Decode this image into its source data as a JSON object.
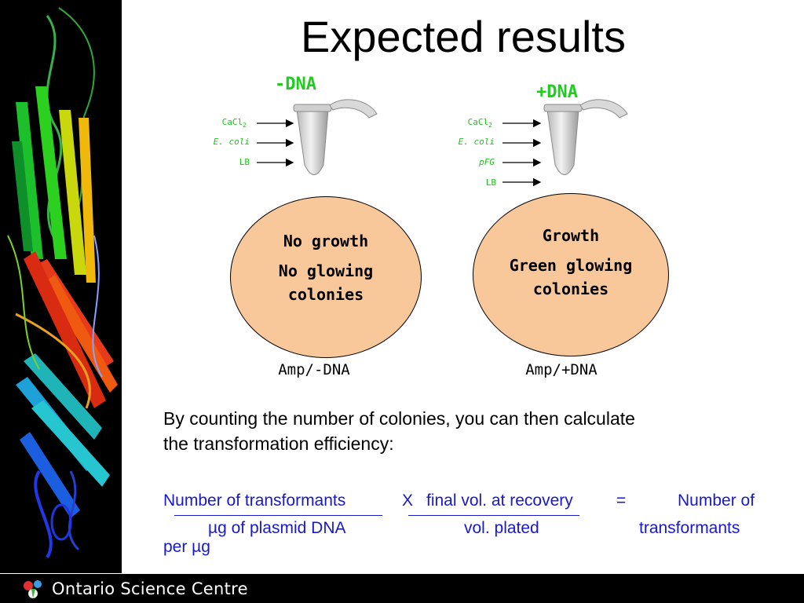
{
  "title": "Expected results",
  "tubes": {
    "minus": {
      "label": "-DNA",
      "reagents": [
        {
          "base": "CaCl",
          "sub": "2"
        },
        {
          "base": "E. coli",
          "sub": ""
        },
        {
          "base": "LB",
          "sub": ""
        }
      ]
    },
    "plus": {
      "label": "+DNA",
      "reagents": [
        {
          "base": "CaCl",
          "sub": "2"
        },
        {
          "base": "E. coli",
          "sub": ""
        },
        {
          "base": "pFG",
          "sub": ""
        },
        {
          "base": "LB",
          "sub": ""
        }
      ]
    }
  },
  "plates": {
    "minus": {
      "line1": "No growth",
      "line2a": "No glowing",
      "line2b": "colonies",
      "label": "Amp/-DNA"
    },
    "plus": {
      "line1": "Growth",
      "line2a": "Green glowing",
      "line2b": "colonies",
      "label": "Amp/+DNA"
    }
  },
  "description": {
    "line1": "By counting the number of colonies, you can then calculate",
    "line2": "the transformation efficiency:"
  },
  "formula": {
    "numerator1": "Number of transformants",
    "operator_x": "X",
    "numerator2": "final vol. at recovery",
    "operator_eq": "=",
    "result_top": "Number of",
    "denominator1": "µg of plasmid DNA",
    "denominator2": "vol. plated",
    "result_bottom": "transformants",
    "result_tail": "per µg"
  },
  "footer": {
    "brand": "Ontario Science Centre"
  },
  "colors": {
    "green_label": "#1fcc1f",
    "formula_blue": "#1818cc",
    "dish_fill": "#f8c89a"
  }
}
